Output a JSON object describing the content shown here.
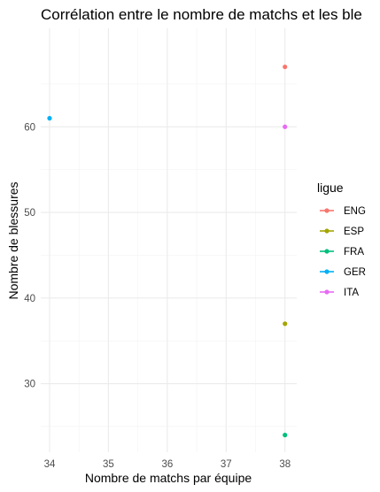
{
  "chart_data": {
    "type": "scatter",
    "title": "Corrélation entre le nombre de matchs et les ble",
    "xlabel": "Nombre de matchs par équipe",
    "ylabel": "Nombre de blessures",
    "xlim": [
      33.85,
      38.2
    ],
    "ylim": [
      22,
      71.5
    ],
    "x_ticks": [
      34,
      35,
      36,
      37,
      38
    ],
    "x_tick_labels": [
      "34",
      "35",
      "36",
      "37",
      "38"
    ],
    "y_ticks": [
      30,
      40,
      50,
      60
    ],
    "y_tick_labels": [
      "30",
      "40",
      "50",
      "60"
    ],
    "grid": true,
    "legend": {
      "title": "ligue",
      "position": "right"
    },
    "series": [
      {
        "name": "ENG",
        "color": "#F8766D",
        "points": [
          {
            "x": 38,
            "y": 67
          }
        ]
      },
      {
        "name": "ESP",
        "color": "#A3A500",
        "points": [
          {
            "x": 38,
            "y": 37
          }
        ]
      },
      {
        "name": "FRA",
        "color": "#00BF7D",
        "points": [
          {
            "x": 38,
            "y": 24
          }
        ]
      },
      {
        "name": "GER",
        "color": "#00B0F6",
        "points": [
          {
            "x": 34,
            "y": 61
          }
        ]
      },
      {
        "name": "ITA",
        "color": "#E76BF3",
        "points": [
          {
            "x": 38,
            "y": 60
          }
        ]
      }
    ]
  }
}
